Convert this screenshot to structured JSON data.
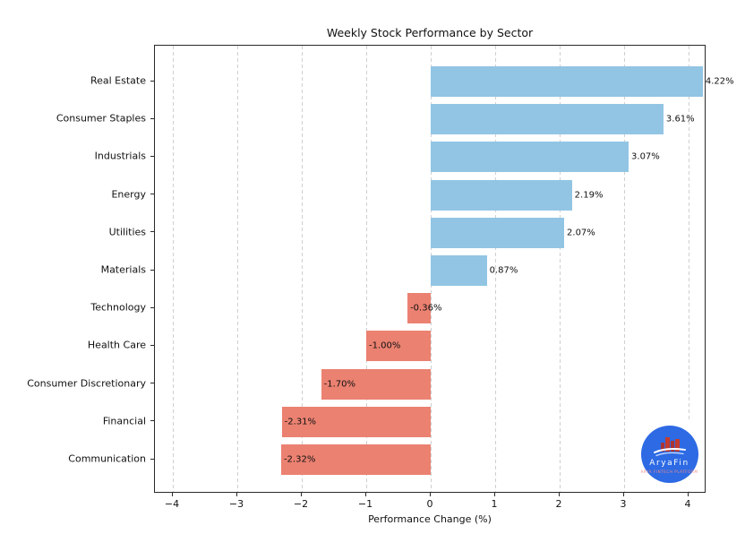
{
  "chart_data": {
    "type": "bar",
    "orientation": "horizontal",
    "title": "Weekly Stock Performance by Sector",
    "xlabel": "Performance Change (%)",
    "categories": [
      "Real Estate",
      "Consumer Staples",
      "Industrials",
      "Energy",
      "Utilities",
      "Materials",
      "Technology",
      "Health Care",
      "Consumer Discretionary",
      "Financial",
      "Communication"
    ],
    "values": [
      4.22,
      3.61,
      3.07,
      2.19,
      2.07,
      0.87,
      -0.36,
      -1.0,
      -1.7,
      -2.31,
      -2.32
    ],
    "value_labels": [
      "4.22%",
      "3.61%",
      "3.07%",
      "2.19%",
      "2.07%",
      "0.87%",
      "-0.36%",
      "-1.00%",
      "-1.70%",
      "-2.31%",
      "-2.32%"
    ],
    "xticks": [
      -4,
      -3,
      -2,
      -1,
      0,
      1,
      2,
      3,
      4
    ],
    "xtick_labels": [
      "−4",
      "−3",
      "−2",
      "−1",
      "0",
      "1",
      "2",
      "3",
      "4"
    ],
    "xlim": [
      -4.28,
      4.28
    ],
    "grid": {
      "axis": "x",
      "style": "dashed",
      "color": "#cfcfcf"
    },
    "colors": {
      "positive": "#92C5E4",
      "negative": "#EB8171"
    },
    "legend": "none"
  },
  "logo": {
    "brand": "AryaFin",
    "tagline": "ARYA FINTECH PLATFORM",
    "colors": {
      "circle": "#2D6AE4",
      "bar_dark": "#A93434",
      "bar_light": "#C23B2E",
      "wave": "#ffffff",
      "wave2": "#cfe0ff",
      "brand_text": "#ffffff",
      "tagline_text": "#F08A8A"
    }
  }
}
